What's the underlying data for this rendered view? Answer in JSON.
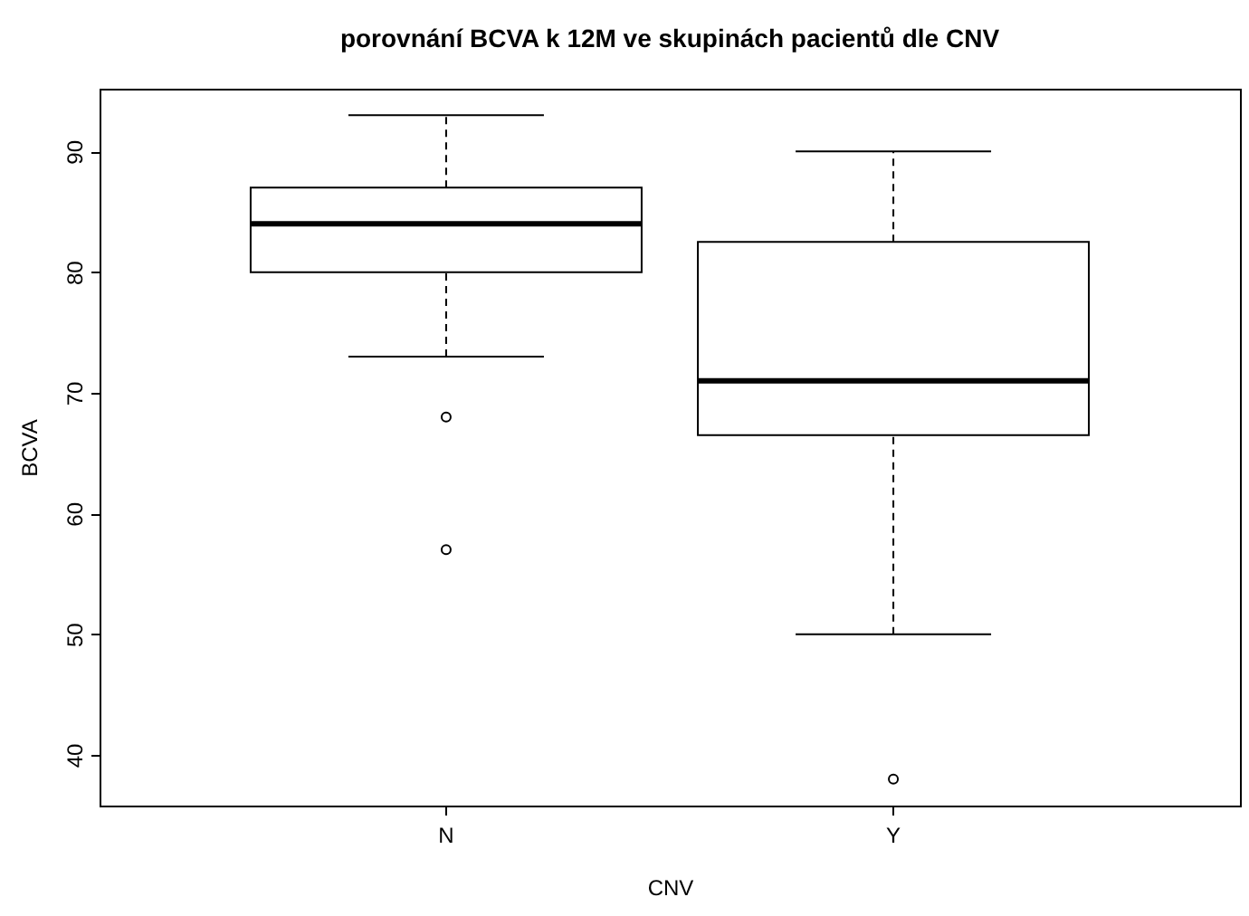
{
  "chart_data": {
    "type": "box",
    "title": "porovnání BCVA k 12M ve skupinách pacientů dle CNV",
    "xlabel": "CNV",
    "ylabel": "BCVA",
    "categories": [
      "N",
      "Y"
    ],
    "boxes": [
      {
        "low": 73,
        "q1": 80,
        "median": 84,
        "q3": 87,
        "high": 93,
        "outliers": [
          68,
          57
        ]
      },
      {
        "low": 50,
        "q1": 66.5,
        "median": 71,
        "q3": 82.5,
        "high": 90,
        "outliers": [
          38
        ]
      }
    ],
    "color": "#ffffff",
    "ylim": [
      35.8,
      95.2
    ],
    "yticks": [
      40,
      50,
      60,
      70,
      80,
      90
    ],
    "grid": false,
    "line_style": "dashed"
  }
}
